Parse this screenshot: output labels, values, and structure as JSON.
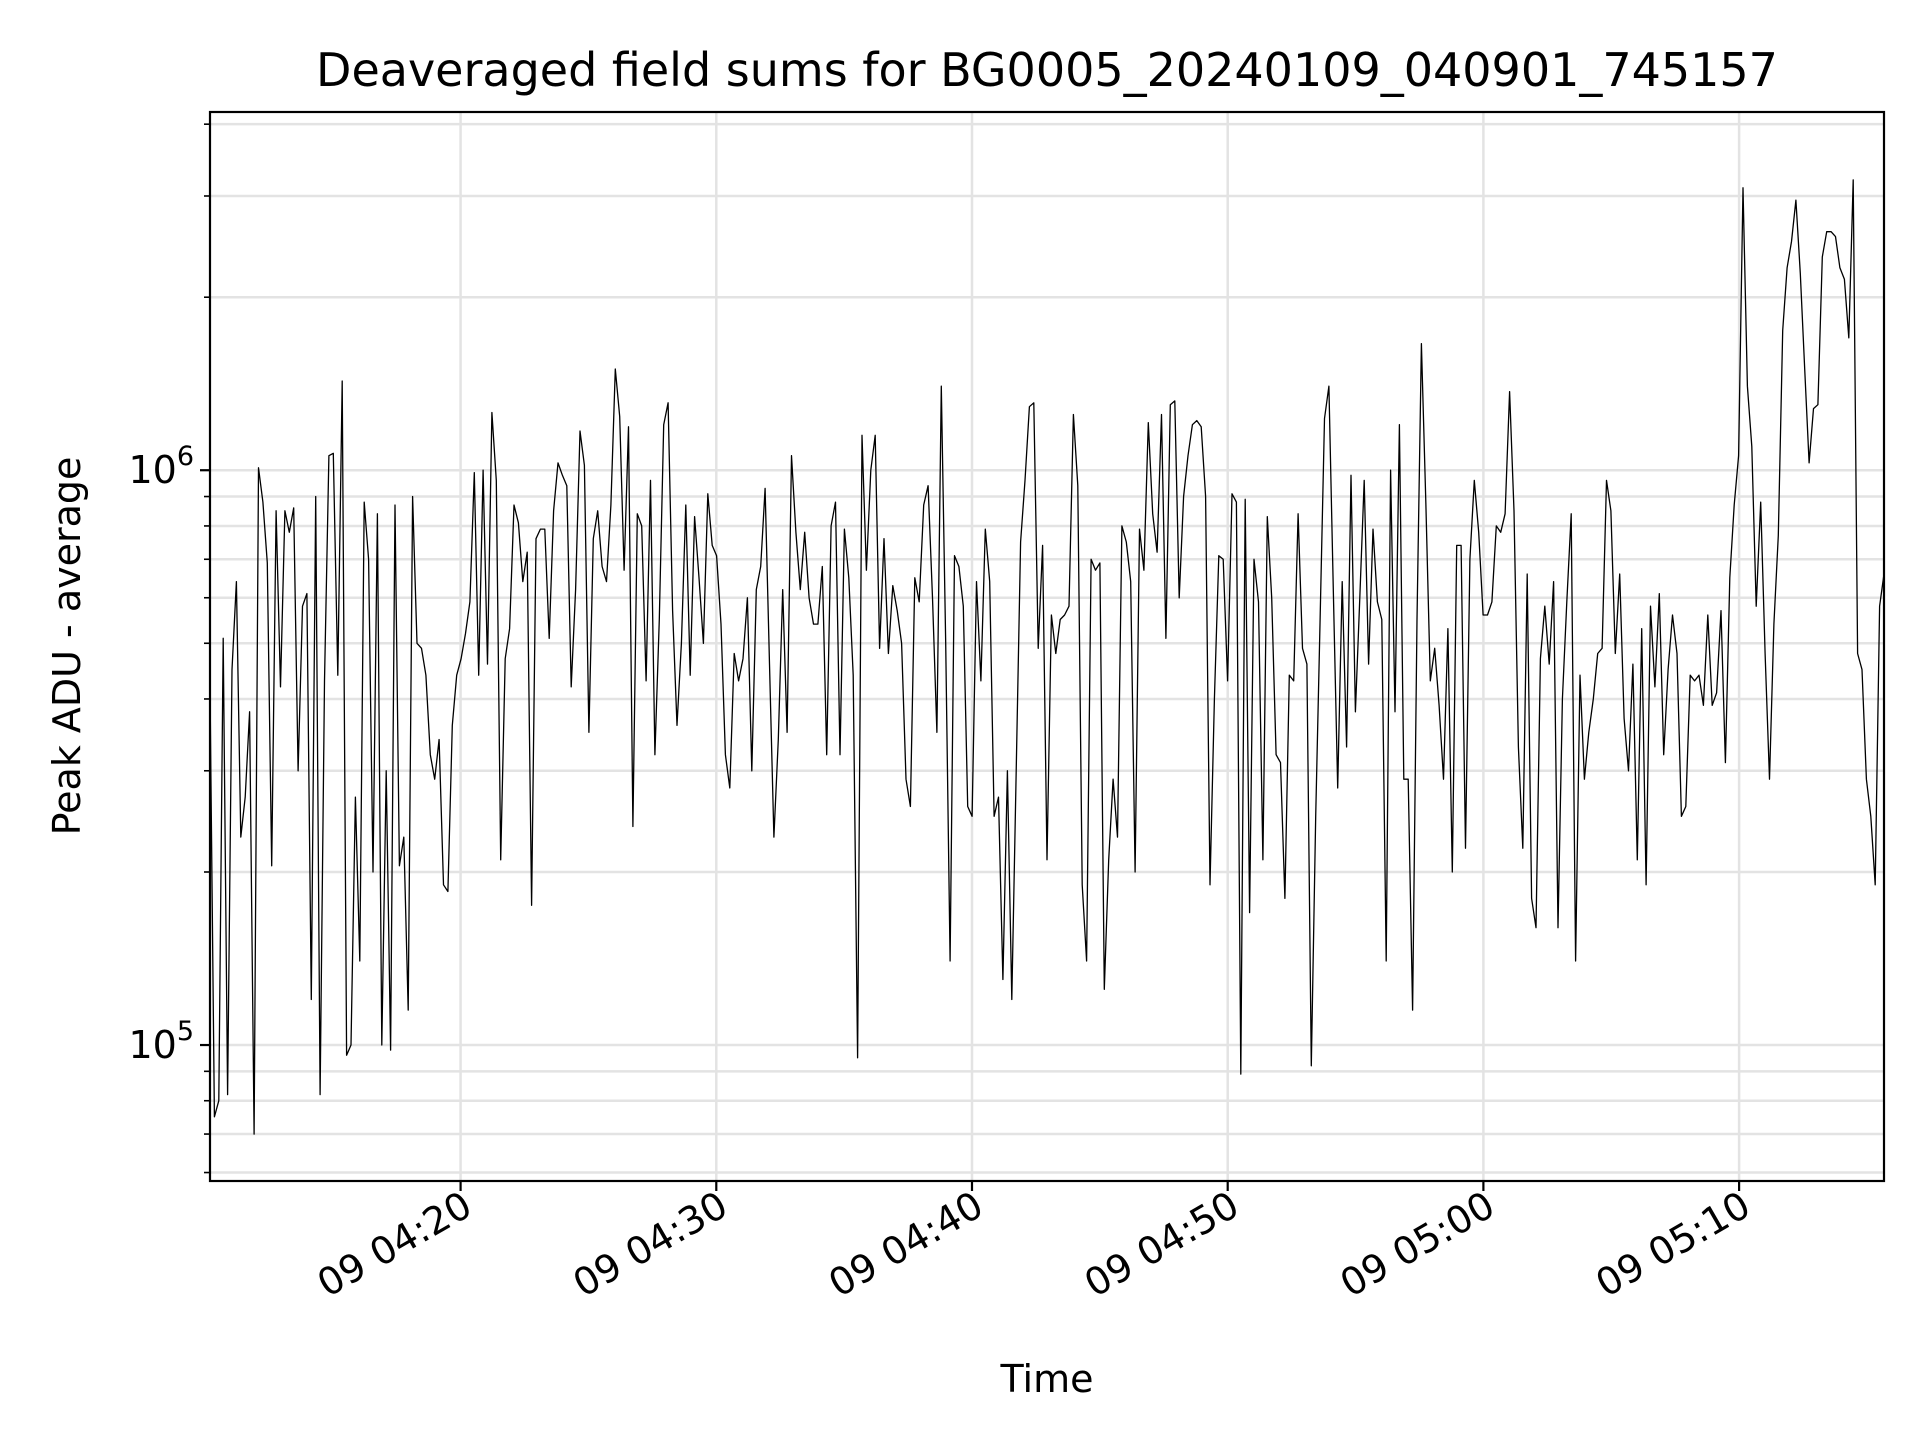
{
  "chart_data": {
    "type": "line",
    "title": "Deaveraged field sums for BG0005_20240109_040901_745157",
    "xlabel": "Time",
    "ylabel": "Peak ADU - average",
    "y_scale": "log",
    "ylim": [
      58000,
      4200000
    ],
    "xlim": [
      "09 04:10:12",
      "09 05:15:40"
    ],
    "grid": true,
    "x_ticks": [
      {
        "label": "09 04:20",
        "value": "09 04:20:00"
      },
      {
        "label": "09 04:30",
        "value": "09 04:30:00"
      },
      {
        "label": "09 04:40",
        "value": "09 04:40:00"
      },
      {
        "label": "09 04:50",
        "value": "09 04:50:00"
      },
      {
        "label": "09 05:00",
        "value": "09 05:00:00"
      },
      {
        "label": "09 05:10",
        "value": "09 05:10:00"
      }
    ],
    "y_ticks": [
      {
        "base": "10",
        "exp": "5",
        "value": 100000
      },
      {
        "base": "10",
        "exp": "6",
        "value": 1000000
      }
    ],
    "series": [
      {
        "color": "#000000",
        "x_start": "09 04:10:12",
        "x_end": "09 05:15:40",
        "y": [
          420000,
          75000,
          80000,
          510000,
          82000,
          450000,
          640000,
          230000,
          270000,
          380000,
          70000,
          1010000,
          880000,
          690000,
          205000,
          850000,
          420000,
          850000,
          780000,
          860000,
          300000,
          580000,
          610000,
          120000,
          900000,
          82000,
          430000,
          1060000,
          1070000,
          440000,
          1430000,
          96000,
          100000,
          270000,
          140000,
          880000,
          700000,
          200000,
          840000,
          100000,
          300000,
          98000,
          870000,
          205000,
          230000,
          115000,
          900000,
          500000,
          490000,
          440000,
          320000,
          290000,
          340000,
          190000,
          185000,
          360000,
          440000,
          470000,
          520000,
          590000,
          990000,
          440000,
          1000000,
          460000,
          1260000,
          960000,
          210000,
          470000,
          530000,
          870000,
          810000,
          640000,
          720000,
          175000,
          760000,
          790000,
          790000,
          510000,
          850000,
          1030000,
          980000,
          940000,
          420000,
          620000,
          1170000,
          1020000,
          350000,
          760000,
          850000,
          680000,
          640000,
          870000,
          1500000,
          1240000,
          670000,
          1190000,
          240000,
          840000,
          800000,
          430000,
          960000,
          320000,
          550000,
          1200000,
          1310000,
          570000,
          360000,
          500000,
          870000,
          440000,
          830000,
          650000,
          500000,
          910000,
          740000,
          710000,
          540000,
          320000,
          280000,
          480000,
          430000,
          470000,
          600000,
          300000,
          620000,
          680000,
          930000,
          460000,
          230000,
          340000,
          620000,
          350000,
          1060000,
          780000,
          620000,
          780000,
          600000,
          540000,
          540000,
          680000,
          320000,
          800000,
          880000,
          320000,
          790000,
          650000,
          440000,
          95000,
          1150000,
          670000,
          1000000,
          1150000,
          490000,
          760000,
          480000,
          630000,
          570000,
          500000,
          290000,
          260000,
          650000,
          590000,
          870000,
          940000,
          600000,
          350000,
          1400000,
          500000,
          140000,
          710000,
          680000,
          580000,
          260000,
          250000,
          640000,
          430000,
          790000,
          640000,
          250000,
          270000,
          130000,
          300000,
          120000,
          300000,
          750000,
          960000,
          1290000,
          1310000,
          490000,
          740000,
          210000,
          560000,
          480000,
          550000,
          560000,
          580000,
          1250000,
          940000,
          190000,
          140000,
          700000,
          670000,
          690000,
          125000,
          210000,
          290000,
          230000,
          800000,
          750000,
          640000,
          200000,
          790000,
          670000,
          1210000,
          840000,
          720000,
          1250000,
          510000,
          1300000,
          1320000,
          600000,
          900000,
          1060000,
          1200000,
          1220000,
          1190000,
          900000,
          190000,
          400000,
          710000,
          700000,
          430000,
          910000,
          880000,
          89000,
          890000,
          170000,
          700000,
          590000,
          210000,
          830000,
          600000,
          320000,
          310000,
          180000,
          440000,
          430000,
          840000,
          490000,
          460000,
          92000,
          250000,
          550000,
          1230000,
          1400000,
          620000,
          280000,
          640000,
          330000,
          980000,
          380000,
          600000,
          960000,
          460000,
          790000,
          590000,
          550000,
          140000,
          1000000,
          380000,
          1200000,
          290000,
          290000,
          115000,
          550000,
          1660000,
          870000,
          430000,
          490000,
          390000,
          290000,
          530000,
          200000,
          740000,
          740000,
          220000,
          700000,
          960000,
          780000,
          560000,
          560000,
          590000,
          800000,
          780000,
          840000,
          1370000,
          850000,
          330000,
          220000,
          660000,
          180000,
          160000,
          470000,
          580000,
          460000,
          640000,
          160000,
          400000,
          590000,
          840000,
          140000,
          440000,
          290000,
          350000,
          400000,
          480000,
          490000,
          960000,
          850000,
          480000,
          660000,
          370000,
          300000,
          460000,
          210000,
          530000,
          190000,
          580000,
          420000,
          610000,
          320000,
          450000,
          560000,
          480000,
          250000,
          260000,
          440000,
          430000,
          440000,
          390000,
          560000,
          390000,
          410000,
          570000,
          310000,
          650000,
          870000,
          1060000,
          3100000,
          1400000,
          1100000,
          580000,
          880000,
          480000,
          290000,
          540000,
          770000,
          1750000,
          2250000,
          2500000,
          2950000,
          2200000,
          1500000,
          1030000,
          1280000,
          1300000,
          2350000,
          2600000,
          2600000,
          2550000,
          2250000,
          2150000,
          1700000,
          3200000,
          480000,
          450000,
          290000,
          250000,
          190000,
          580000,
          660000
        ]
      }
    ]
  }
}
